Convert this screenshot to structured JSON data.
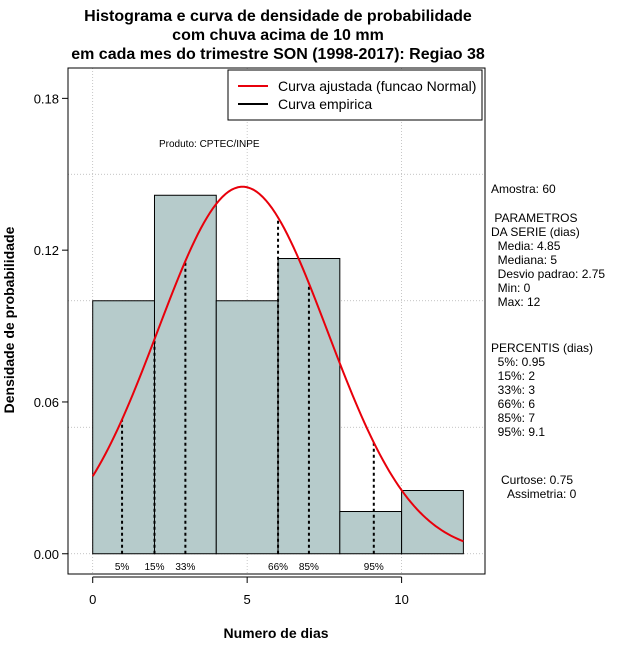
{
  "chart_data": {
    "type": "bar",
    "title_lines": [
      "Histograma e curva de densidade de probabilidade",
      "com chuva acima de 10 mm",
      "em cada mes do trimestre SON (1998-2017): Regiao 38"
    ],
    "xlabel": "Numero de dias",
    "ylabel": "Densidade de probabilidade",
    "xlim": [
      -0.8,
      12.7
    ],
    "ylim": [
      -0.008,
      0.192
    ],
    "x_ticks": [
      0,
      5,
      10
    ],
    "x_tick_labels": [
      "0",
      "5",
      "10"
    ],
    "y_ticks": [
      0.0,
      0.06,
      0.12,
      0.18
    ],
    "y_tick_labels": [
      "0.00",
      "0.06",
      "0.12",
      "0.18"
    ],
    "x_gridlines": [
      0,
      5,
      10
    ],
    "y_gridlines": [
      0.0,
      0.05,
      0.1,
      0.15
    ],
    "bins": [
      {
        "from": 0,
        "to": 2,
        "density": 0.1
      },
      {
        "from": 2,
        "to": 4,
        "density": 0.1417
      },
      {
        "from": 4,
        "to": 6,
        "density": 0.1
      },
      {
        "from": 6,
        "to": 8,
        "density": 0.1167
      },
      {
        "from": 8,
        "to": 10,
        "density": 0.0167
      },
      {
        "from": 10,
        "to": 12,
        "density": 0.025
      }
    ],
    "normal_curve": {
      "mean": 4.85,
      "sd": 2.75,
      "x_from": 0,
      "x_to": 12
    },
    "percentiles": [
      {
        "label": "5%",
        "x": 0.95
      },
      {
        "label": "15%",
        "x": 2
      },
      {
        "label": "33%",
        "x": 3
      },
      {
        "label": "66%",
        "x": 6
      },
      {
        "label": "85%",
        "x": 7
      },
      {
        "label": "95%",
        "x": 9.1
      }
    ],
    "legend": [
      {
        "label": "Curva ajustada (funcao Normal)",
        "color": "#e8000b"
      },
      {
        "label": "Curva empirica",
        "color": "#000000"
      }
    ],
    "product_note": "Produto: CPTEC/INPE",
    "colors": {
      "bar_fill": "#b6cbcb",
      "bar_stroke": "#000000",
      "curve": "#e8000b",
      "grid": "#b0b0b0"
    }
  },
  "stats_panel": [
    "Amostra: 60",
    " PARAMETROS",
    "DA SERIE (dias)",
    "  Media: 4.85",
    "  Mediana: 5",
    "  Desvio padrao: 2.75",
    "  Min: 0",
    "  Max: 12",
    "PERCENTIS (dias)",
    "  5%: 0.95",
    "  15%: 2",
    "  33%: 3",
    "  66%: 6",
    "  85%: 7",
    "  95%: 9.1",
    "Curtose: 0.75",
    "  Assimetria: 0"
  ]
}
